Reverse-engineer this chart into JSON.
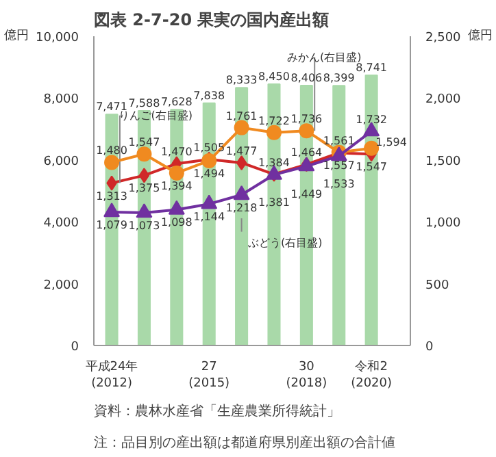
{
  "chart_data": {
    "type": "bar",
    "title": "図表 2-7-20 果実の国内産出額",
    "categories": [
      "平成24年\n(2012)",
      null,
      null,
      "27\n(2015)",
      null,
      null,
      "30\n(2018)",
      null,
      "令和2\n(2020)"
    ],
    "ylabel": "億円",
    "y2label": "億円",
    "ylim": [
      0,
      10000
    ],
    "yticks": [
      0,
      {
        "value": 2000,
        "label": "2,000"
      },
      {
        "value": 4000,
        "label": "4,000"
      },
      {
        "value": 6000,
        "label": "6,000"
      },
      {
        "value": 8000,
        "label": "8,000"
      },
      {
        "value": 10000,
        "label": "10,000"
      }
    ],
    "y2lim": [
      0,
      2500
    ],
    "y2ticks": [
      0,
      500,
      {
        "value": 1000,
        "label": "1,000"
      },
      {
        "value": 1500,
        "label": "1,500"
      },
      {
        "value": 2000,
        "label": "2,000"
      },
      {
        "value": 2500,
        "label": "2,500"
      }
    ],
    "grid": false,
    "series": [
      {
        "color": "#a9d9a9",
        "values": [
          7471,
          7588,
          7628,
          7838,
          8333,
          8450,
          8406,
          8399,
          8741
        ],
        "value_labels": [
          "7,471",
          "7,588",
          "7,628",
          "7,838",
          "8,333",
          "8,450",
          "8,406",
          "8,399",
          "8,741"
        ]
      },
      {
        "type": "line",
        "name": "りんご(右目盛)",
        "axis": "y2",
        "color": "#d02828",
        "marker": "diamond",
        "values": [
          1313,
          1375,
          1470,
          1505,
          1477,
          1384,
          1464,
          1557,
          1547
        ],
        "value_labels": [
          "1,313",
          "1,375",
          "1,470",
          "1,505",
          "1,477",
          "1,384",
          "1,464",
          "1,557",
          "1,547"
        ]
      },
      {
        "type": "line",
        "name": "みかん(右目盛)",
        "axis": "y2",
        "color": "#f08a20",
        "marker": "circle",
        "values": [
          1480,
          1547,
          1394,
          1494,
          1761,
          1722,
          1736,
          1561,
          1594
        ],
        "value_labels": [
          "1,480",
          "1,547",
          "1,394",
          "1,494",
          "1,761",
          "1,722",
          "1,736",
          "1,561",
          "1,594"
        ]
      },
      {
        "type": "line",
        "name": "ぶどう(右目盛)",
        "axis": "y2",
        "color": "#7030a0",
        "marker": "triangle",
        "values": [
          1079,
          1073,
          1098,
          1144,
          1218,
          1381,
          1449,
          1533,
          1732
        ],
        "value_labels": [
          "1,079",
          "1,073",
          "1,098",
          "1,144",
          "1,218",
          "1,381",
          "1,449",
          "1,533",
          "1,732"
        ]
      }
    ],
    "annotations": [
      "資料：農林水産省「生産農業所得統計」",
      "注：品目別の産出額は都道府県別産出額の合計値"
    ]
  }
}
